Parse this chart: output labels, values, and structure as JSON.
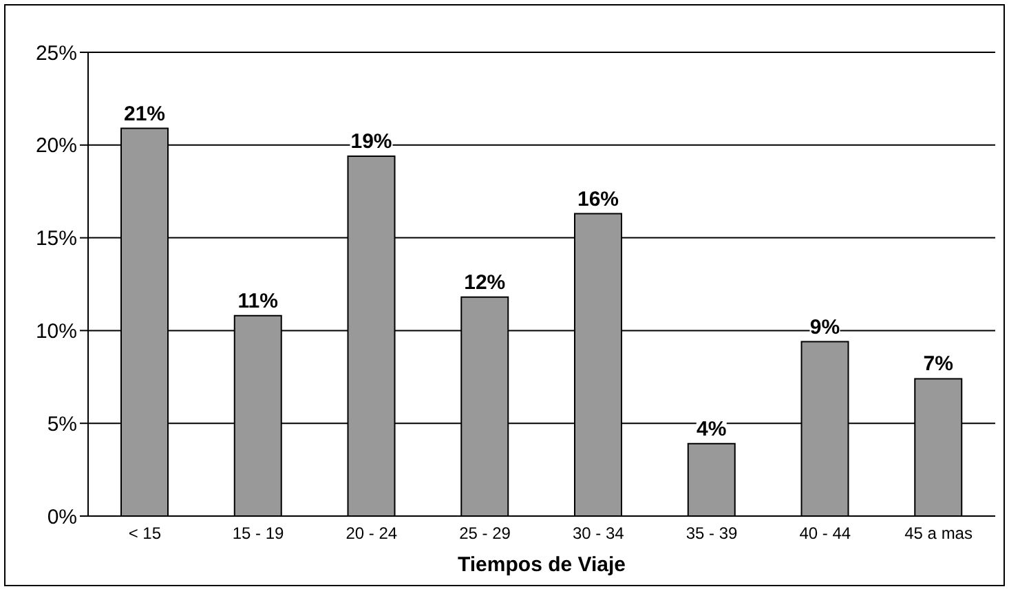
{
  "chart_data": {
    "type": "bar",
    "xlabel": "Tiempos de Viaje",
    "categories": [
      "< 15",
      "15 - 19",
      "20 - 24",
      "25 - 29",
      "30 - 34",
      "35 - 39",
      "40 - 44",
      "45 a mas"
    ],
    "values": [
      20.9,
      10.8,
      19.4,
      11.8,
      16.3,
      3.9,
      9.4,
      7.4
    ],
    "value_labels": [
      "21%",
      "11%",
      "19%",
      "12%",
      "16%",
      "4%",
      "9%",
      "7%"
    ],
    "color": "#999999",
    "ylim": [
      0,
      25
    ],
    "yticks": [
      {
        "value": 0,
        "label": "0%"
      },
      {
        "value": 5,
        "label": "5%"
      },
      {
        "value": 10,
        "label": "10%"
      },
      {
        "value": 15,
        "label": "15%"
      },
      {
        "value": 20,
        "label": "20%"
      },
      {
        "value": 25,
        "label": "25%"
      }
    ],
    "grid": "y"
  }
}
